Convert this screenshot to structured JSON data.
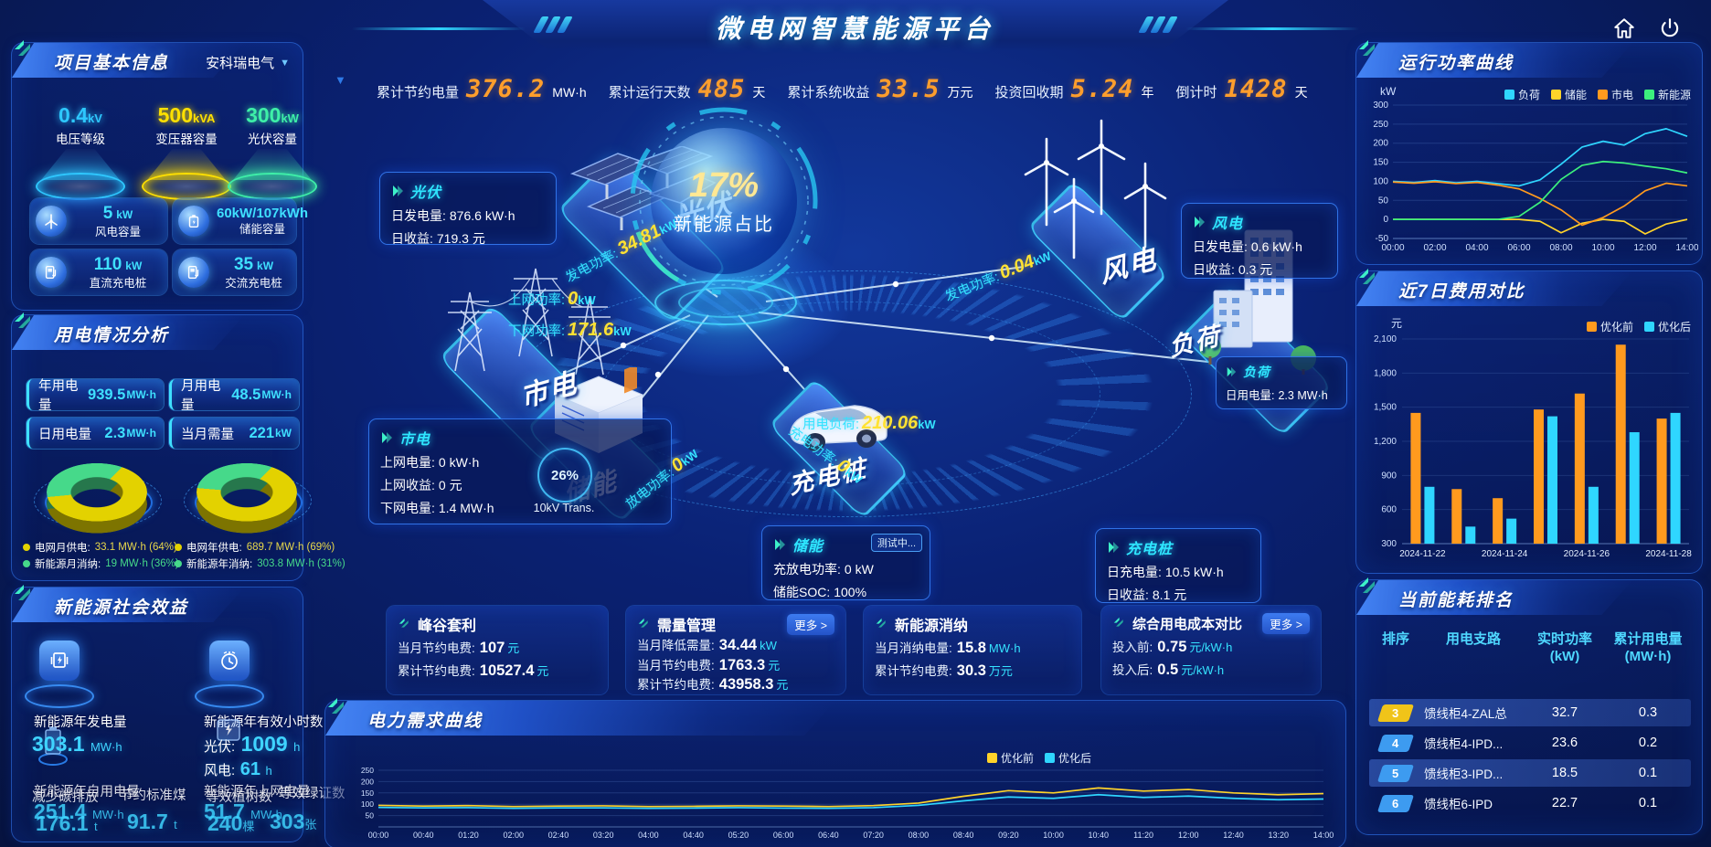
{
  "colors": {
    "accent_cyan": "#2fd6ff",
    "accent_yellow": "#ffd32a",
    "accent_orange": "#ff9a1e",
    "accent_green": "#3cf07d",
    "digit_orange": "#ff9e2c",
    "rank_badge_yellow": "#f0c419",
    "rank_badge_blue": "#3d9bf0"
  },
  "header": {
    "title": "微电网智慧能源平台"
  },
  "top_stats": {
    "items": [
      {
        "label": "累计节约电量",
        "value": "376.2",
        "unit": "MW·h"
      },
      {
        "label": "累计运行天数",
        "value": "485",
        "unit": "天"
      },
      {
        "label": "累计系统收益",
        "value": "33.5",
        "unit": "万元"
      },
      {
        "label": "投资回收期",
        "value": "5.24",
        "unit": "年"
      },
      {
        "label": "倒计时",
        "value": "1428",
        "unit": "天"
      }
    ]
  },
  "project_info": {
    "title": "项目基本信息",
    "company": "安科瑞电气",
    "cones": [
      {
        "value": "0.4",
        "unit": "kV",
        "label": "电压等级",
        "color": "#2ec8ff"
      },
      {
        "value": "500",
        "unit": "kVA",
        "label": "变压器容量",
        "color": "#ffe000"
      },
      {
        "value": "300",
        "unit": "kW",
        "label": "光伏容量",
        "color": "#3ef0a8"
      }
    ],
    "tiles": [
      {
        "value": "5",
        "unit": "kW",
        "label": "风电容量"
      },
      {
        "value": "60kW/107kWh",
        "unit": "",
        "label": "储能容量"
      },
      {
        "value": "110",
        "unit": "kW",
        "label": "直流充电桩"
      },
      {
        "value": "35",
        "unit": "kW",
        "label": "交流充电桩"
      }
    ]
  },
  "usage_analysis": {
    "title": "用电情况分析",
    "stats": [
      {
        "label": "年用电量",
        "value": "939.5",
        "unit": "MW·h"
      },
      {
        "label": "月用电量",
        "value": "48.5",
        "unit": "MW·h"
      },
      {
        "label": "日用电量",
        "value": "2.3",
        "unit": "MW·h"
      },
      {
        "label": "当月需量",
        "value": "221",
        "unit": "kW"
      }
    ],
    "legend_month": [
      {
        "name": "电网月供电:",
        "value": "33.1 MW·h (64%)",
        "color": "#e3d200"
      },
      {
        "name": "新能源月消纳:",
        "value": "19 MW·h (36%)",
        "color": "#46d98a"
      }
    ],
    "legend_year": [
      {
        "name": "电网年供电:",
        "value": "689.7 MW·h (69%)",
        "color": "#e3d200"
      },
      {
        "name": "新能源年消纳:",
        "value": "303.8 MW·h (31%)",
        "color": "#46d98a"
      }
    ]
  },
  "social_benefits": {
    "title": "新能源社会效益",
    "annual_generation": {
      "label": "新能源年发电量",
      "value": "303.1",
      "unit": "MW·h"
    },
    "effective_hours": {
      "label": "新能源年有效小时数",
      "pv": "光伏:",
      "pv_value": "1009",
      "pv_unit": "h",
      "wind": "风电:",
      "wind_value": "61",
      "wind_unit": "h"
    },
    "self_use": {
      "label": "新能源年自用电量",
      "value": "251.4",
      "unit": "MW·h"
    },
    "carbon": {
      "label": "减少碳排放",
      "value": "176.1",
      "unit": "t"
    },
    "coal": {
      "label": "节约标准煤",
      "value": "91.7",
      "unit": "t"
    },
    "to_grid": {
      "label": "新能源年上网电量",
      "value": "51.7",
      "unit": "MW·h"
    },
    "trees": {
      "label": "等效植树数",
      "value": "240",
      "unit": "棵"
    },
    "certs": {
      "label": "等效绿证数",
      "value": "303",
      "unit": "张"
    }
  },
  "diagram": {
    "center": {
      "value": "17%",
      "label": "新能源占比"
    },
    "nodes": {
      "pv": "光伏",
      "wind": "风电",
      "grid": "市电",
      "storage": "储能",
      "charger": "充电桩",
      "load": "负荷"
    },
    "callouts": {
      "pv": {
        "title": "光伏",
        "rows": [
          {
            "label": "日发电量:",
            "value": "876.6 kW·h"
          },
          {
            "label": "日收益:",
            "value": "719.3 元"
          }
        ]
      },
      "wind": {
        "title": "风电",
        "rows": [
          {
            "label": "日发电量:",
            "value": "0.6 kW·h"
          },
          {
            "label": "日收益:",
            "value": "0.3 元"
          }
        ]
      },
      "grid": {
        "title": "市电",
        "rows": [
          {
            "label": "上网电量:",
            "value": "0 kW·h"
          },
          {
            "label": "上网收益:",
            "value": "0 元"
          },
          {
            "label": "下网电量:",
            "value": "1.4 MW·h"
          }
        ]
      },
      "load": {
        "title": "负荷",
        "rows": [
          {
            "label": "日用电量:",
            "value": "2.3 MW·h"
          }
        ]
      },
      "storage": {
        "title": "储能",
        "badge": "测试中...",
        "rows": [
          {
            "label": "充放电功率:",
            "value": "0 kW"
          },
          {
            "label": "储能SOC:",
            "value": "100%"
          }
        ]
      },
      "charger": {
        "title": "充电桩",
        "rows": [
          {
            "label": "日充电量:",
            "value": "10.5 kW·h"
          },
          {
            "label": "日收益:",
            "value": "8.1 元"
          }
        ]
      }
    },
    "flows": {
      "pv_gen": {
        "label": "发电功率:",
        "value": "34.81",
        "unit": "kW"
      },
      "to_grid": {
        "label": "上网功率:",
        "value": "0",
        "unit": "kW"
      },
      "from_grid": {
        "label": "下网功率:",
        "value": "171.6",
        "unit": "kW"
      },
      "wind_gen": {
        "label": "发电功率:",
        "value": "0.04",
        "unit": "kW"
      },
      "load": {
        "label": "用电负荷:",
        "value": "210.06",
        "unit": "kW"
      },
      "charge": {
        "label": "充电功率:",
        "value": "0",
        "unit": "kW"
      },
      "discharge": {
        "label": "放电功率:",
        "value": "0",
        "unit": "kW"
      }
    },
    "transformer": {
      "pct": "26%",
      "label": "10kV Trans."
    }
  },
  "benefit_cards": [
    {
      "title": "峰谷套利",
      "rows": [
        {
          "label": "当月节约电费:",
          "value": "107",
          "unit": "元"
        },
        {
          "label": "累计节约电费:",
          "value": "10527.4",
          "unit": "元"
        }
      ]
    },
    {
      "title": "需量管理",
      "more": "更多 >",
      "rows": [
        {
          "label": "当月降低需量:",
          "value": "34.44",
          "unit": "kW"
        },
        {
          "label": "当月节约电费:",
          "value": "1763.3",
          "unit": "元"
        },
        {
          "label": "累计节约电费:",
          "value": "43958.3",
          "unit": "元"
        }
      ]
    },
    {
      "title": "新能源消纳",
      "rows": [
        {
          "label": "当月消纳电量:",
          "value": "15.8",
          "unit": "MW·h"
        },
        {
          "label": "累计节约电费:",
          "value": "30.3",
          "unit": "万元"
        }
      ]
    },
    {
      "title": "综合用电成本对比",
      "more": "更多 >",
      "rows": [
        {
          "label": "投入前:",
          "value": "0.75",
          "unit": "元/kW·h"
        },
        {
          "label": "投入后:",
          "value": "0.5",
          "unit": "元/kW·h"
        }
      ]
    }
  ],
  "demand_panel": {
    "title": "电力需求曲线"
  },
  "power_panel": {
    "title": "运行功率曲线"
  },
  "cost_panel": {
    "title": "近7日费用对比"
  },
  "ranking": {
    "title": "当前能耗排名",
    "columns": [
      {
        "label": "排序",
        "sub": ""
      },
      {
        "label": "用电支路",
        "sub": ""
      },
      {
        "label": "实时功率",
        "sub": "(kW)"
      },
      {
        "label": "累计用电量",
        "sub": "(MW·h)"
      }
    ],
    "rows": [
      {
        "rank": "3",
        "branch": "馈线柜4-ZAL总",
        "power": "32.7",
        "energy": "0.3",
        "badge_color": "#f0c419",
        "highlight": true
      },
      {
        "rank": "4",
        "branch": "馈线柜4-IPD...",
        "power": "23.6",
        "energy": "0.2",
        "badge_color": "#3d9bf0",
        "highlight": false
      },
      {
        "rank": "5",
        "branch": "馈线柜3-IPD...",
        "power": "18.5",
        "energy": "0.1",
        "badge_color": "#3d9bf0",
        "highlight": true
      },
      {
        "rank": "6",
        "branch": "馈线柜6-IPD",
        "power": "22.7",
        "energy": "0.1",
        "badge_color": "#3d9bf0",
        "highlight": false
      }
    ]
  },
  "chart_data": [
    {
      "id": "power-curve",
      "type": "line",
      "title": "运行功率曲线",
      "ylabel": "kW",
      "ylim": [
        -50,
        300
      ],
      "yticks": [
        300,
        250,
        200,
        150,
        100,
        50,
        0,
        -50
      ],
      "x": [
        "00:00",
        "01:00",
        "02:00",
        "03:00",
        "04:00",
        "05:00",
        "06:00",
        "07:00",
        "08:00",
        "09:00",
        "10:00",
        "11:00",
        "12:00",
        "13:00",
        "14:00"
      ],
      "xticklabels": [
        "00:00",
        "02:00",
        "04:00",
        "06:00",
        "08:00",
        "10:00",
        "12:00",
        "14:00"
      ],
      "legend_position": "top",
      "series": [
        {
          "name": "负荷",
          "color": "#2fd6ff",
          "values": [
            100,
            97,
            102,
            96,
            100,
            94,
            88,
            104,
            145,
            190,
            205,
            195,
            225,
            238,
            218
          ]
        },
        {
          "name": "储能",
          "color": "#ffd32a",
          "values": [
            0,
            0,
            0,
            0,
            0,
            0,
            0,
            -5,
            -35,
            -10,
            0,
            -5,
            -38,
            -12,
            0
          ]
        },
        {
          "name": "市电",
          "color": "#ff9a1e",
          "values": [
            98,
            95,
            99,
            94,
            97,
            90,
            80,
            55,
            25,
            -15,
            5,
            35,
            75,
            95,
            88
          ]
        },
        {
          "name": "新能源",
          "color": "#3cf07d",
          "values": [
            0,
            0,
            0,
            0,
            0,
            0,
            8,
            45,
            105,
            142,
            152,
            148,
            140,
            133,
            122
          ]
        }
      ]
    },
    {
      "id": "cost-compare",
      "type": "bar",
      "title": "近7日费用对比",
      "ylabel": "元",
      "ylim": [
        300,
        2100
      ],
      "yticks": [
        2100,
        1800,
        1500,
        1200,
        900,
        600,
        300
      ],
      "categories": [
        "2024-11-22",
        "2024-11-23",
        "2024-11-24",
        "2024-11-25",
        "2024-11-26",
        "2024-11-27",
        "2024-11-28"
      ],
      "xticklabels": [
        "2024-11-22",
        "2024-11-24",
        "2024-11-26",
        "2024-11-28"
      ],
      "legend_position": "top-right",
      "series": [
        {
          "name": "优化前",
          "color": "#ff9a1e",
          "values": [
            1450,
            780,
            700,
            1480,
            1620,
            2050,
            1400
          ]
        },
        {
          "name": "优化后",
          "color": "#2fd6ff",
          "values": [
            800,
            450,
            520,
            1420,
            800,
            1280,
            1450
          ]
        }
      ]
    },
    {
      "id": "demand-curve",
      "type": "line",
      "title": "电力需求曲线",
      "ylabel": "kW",
      "ylim": [
        0,
        250
      ],
      "yticks": [
        250,
        200,
        150,
        100,
        50
      ],
      "x": [
        "00:00",
        "00:40",
        "01:20",
        "02:00",
        "02:40",
        "03:20",
        "04:00",
        "04:40",
        "05:20",
        "06:00",
        "06:40",
        "07:20",
        "08:00",
        "08:40",
        "09:20",
        "10:00",
        "10:40",
        "11:20",
        "12:00",
        "12:40",
        "13:20",
        "14:00"
      ],
      "legend_position": "top-right",
      "series": [
        {
          "name": "优化前",
          "color": "#ffd32a",
          "values": [
            95,
            92,
            94,
            90,
            92,
            93,
            90,
            91,
            93,
            92,
            90,
            94,
            105,
            135,
            160,
            150,
            172,
            158,
            165,
            150,
            142,
            147
          ]
        },
        {
          "name": "优化后",
          "color": "#2fd6ff",
          "values": [
            86,
            84,
            85,
            82,
            84,
            84,
            82,
            83,
            85,
            83,
            82,
            85,
            95,
            115,
            132,
            126,
            142,
            130,
            136,
            126,
            120,
            123
          ]
        }
      ]
    },
    {
      "id": "donut-month",
      "type": "pie",
      "slices": [
        {
          "label": "电网月供电",
          "value": 33.1,
          "unit": "MW·h",
          "pct": 64,
          "color": "#e3d200"
        },
        {
          "label": "新能源月消纳",
          "value": 19,
          "unit": "MW·h",
          "pct": 36,
          "color": "#46d98a"
        }
      ]
    },
    {
      "id": "donut-year",
      "type": "pie",
      "slices": [
        {
          "label": "电网年供电",
          "value": 689.7,
          "unit": "MW·h",
          "pct": 69,
          "color": "#e3d200"
        },
        {
          "label": "新能源年消纳",
          "value": 303.8,
          "unit": "MW·h",
          "pct": 31,
          "color": "#46d98a"
        }
      ]
    }
  ]
}
